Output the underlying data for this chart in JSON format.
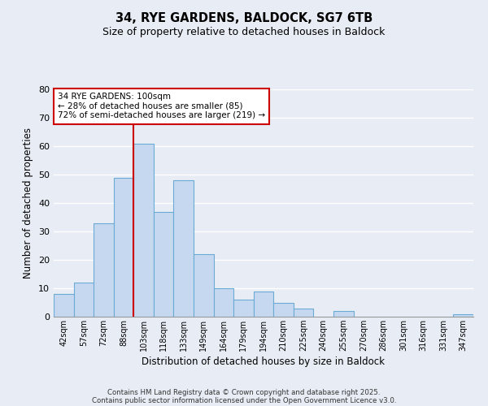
{
  "title": "34, RYE GARDENS, BALDOCK, SG7 6TB",
  "subtitle": "Size of property relative to detached houses in Baldock",
  "xlabel": "Distribution of detached houses by size in Baldock",
  "ylabel": "Number of detached properties",
  "bar_labels": [
    "42sqm",
    "57sqm",
    "72sqm",
    "88sqm",
    "103sqm",
    "118sqm",
    "133sqm",
    "149sqm",
    "164sqm",
    "179sqm",
    "194sqm",
    "210sqm",
    "225sqm",
    "240sqm",
    "255sqm",
    "270sqm",
    "286sqm",
    "301sqm",
    "316sqm",
    "331sqm",
    "347sqm"
  ],
  "bar_values": [
    8,
    12,
    33,
    49,
    61,
    37,
    48,
    22,
    10,
    6,
    9,
    5,
    3,
    0,
    2,
    0,
    0,
    0,
    0,
    0,
    1
  ],
  "bar_color": "#c5d8f0",
  "bar_edge_color": "#6aaad4",
  "vline_color": "#cc0000",
  "annotation_text": "34 RYE GARDENS: 100sqm\n← 28% of detached houses are smaller (85)\n72% of semi-detached houses are larger (219) →",
  "annotation_box_color": "#ffffff",
  "annotation_box_edge": "#cc0000",
  "ylim": [
    0,
    80
  ],
  "yticks": [
    0,
    10,
    20,
    30,
    40,
    50,
    60,
    70,
    80
  ],
  "bg_color": "#e8edf5",
  "grid_color": "#ffffff",
  "footer_line1": "Contains HM Land Registry data © Crown copyright and database right 2025.",
  "footer_line2": "Contains public sector information licensed under the Open Government Licence v3.0."
}
